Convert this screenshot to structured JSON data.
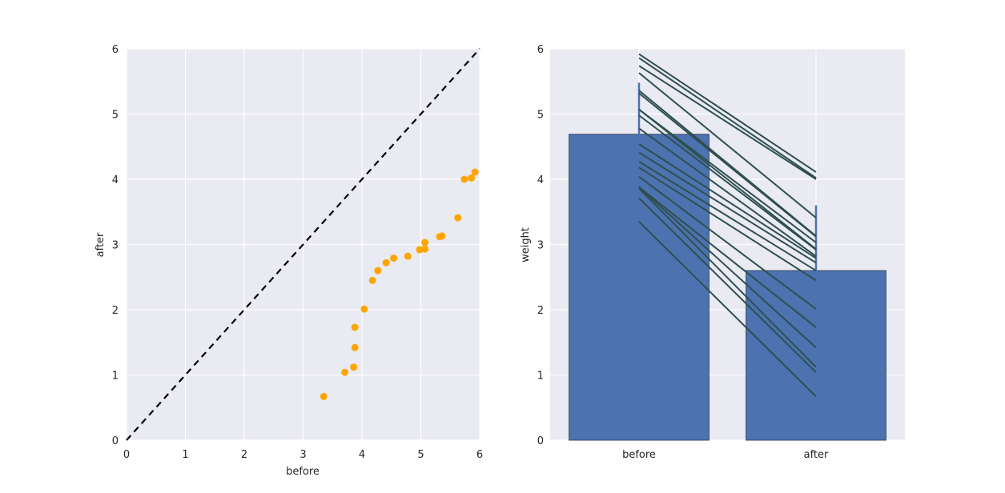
{
  "chart_data": [
    {
      "type": "scatter",
      "xlabel": "before",
      "ylabel": "after",
      "xlim": [
        0,
        6
      ],
      "ylim": [
        0,
        6
      ],
      "xticks": [
        "0",
        "1",
        "2",
        "3",
        "4",
        "5",
        "6"
      ],
      "yticks": [
        "0",
        "1",
        "2",
        "3",
        "4",
        "5",
        "6"
      ],
      "grid": true,
      "point_color": "#FFA500",
      "reference_line": {
        "style": "dashed",
        "color": "#000000",
        "from": [
          0,
          0
        ],
        "to": [
          6,
          6
        ]
      },
      "points": [
        [
          3.35,
          0.67
        ],
        [
          3.71,
          1.04
        ],
        [
          3.86,
          1.12
        ],
        [
          3.88,
          1.42
        ],
        [
          3.88,
          1.73
        ],
        [
          4.04,
          2.01
        ],
        [
          4.18,
          2.45
        ],
        [
          4.27,
          2.6
        ],
        [
          4.41,
          2.72
        ],
        [
          4.54,
          2.79
        ],
        [
          4.78,
          2.82
        ],
        [
          4.98,
          2.92
        ],
        [
          5.07,
          3.03
        ],
        [
          5.07,
          2.93
        ],
        [
          5.32,
          3.12
        ],
        [
          5.36,
          3.13
        ],
        [
          5.63,
          3.41
        ],
        [
          5.74,
          4.0
        ],
        [
          5.86,
          4.02
        ],
        [
          5.92,
          4.11
        ]
      ]
    },
    {
      "type": "bar",
      "categories": [
        "before",
        "after"
      ],
      "values": [
        4.69,
        2.6
      ],
      "errors": [
        0.79,
        1.0
      ],
      "ylabel": "weight",
      "ylim": [
        0,
        6
      ],
      "yticks": [
        "0",
        "1",
        "2",
        "3",
        "4",
        "5",
        "6"
      ],
      "grid": true,
      "bar_color": "#4C72B0",
      "line_color": "#2F4F4F",
      "paired_lines": [
        [
          3.35,
          0.67
        ],
        [
          3.71,
          1.04
        ],
        [
          3.86,
          1.12
        ],
        [
          3.88,
          1.42
        ],
        [
          3.88,
          1.73
        ],
        [
          4.04,
          2.01
        ],
        [
          4.18,
          2.45
        ],
        [
          4.27,
          2.6
        ],
        [
          4.41,
          2.72
        ],
        [
          4.54,
          2.79
        ],
        [
          4.78,
          2.82
        ],
        [
          4.98,
          2.92
        ],
        [
          5.07,
          3.03
        ],
        [
          5.07,
          2.93
        ],
        [
          5.32,
          3.12
        ],
        [
          5.36,
          3.13
        ],
        [
          5.63,
          3.41
        ],
        [
          5.74,
          4.0
        ],
        [
          5.86,
          4.02
        ],
        [
          5.92,
          4.11
        ]
      ]
    }
  ]
}
